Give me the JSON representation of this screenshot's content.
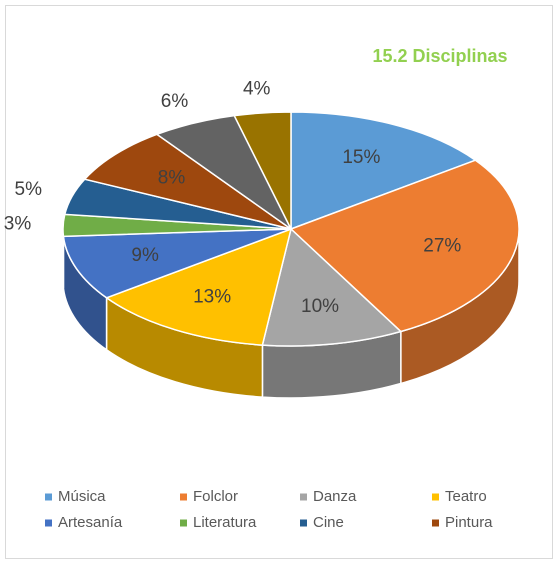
{
  "chart_data": {
    "type": "pie3d",
    "title": "15.2 Disciplinas",
    "categories": [
      "Música",
      "Folclor",
      "Danza",
      "Teatro",
      "Artesanía",
      "Literatura",
      "Cine",
      "Pintura",
      null,
      null
    ],
    "values": [
      15,
      27,
      10,
      13,
      9,
      3,
      5,
      8,
      6,
      4
    ],
    "value_labels": [
      "15%",
      "27%",
      "10%",
      "13%",
      "9%",
      "3%",
      "5%",
      "8%",
      "6%",
      "4%"
    ],
    "colors": [
      "#5b9bd5",
      "#ed7d31",
      "#a5a5a5",
      "#ffc000",
      "#4472c4",
      "#70ad47",
      "#255e91",
      "#9e480e",
      "#636363",
      "#997300"
    ],
    "legend": "bottom"
  }
}
